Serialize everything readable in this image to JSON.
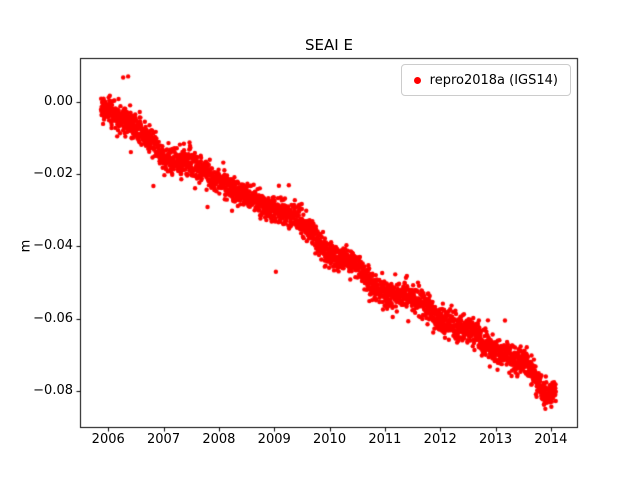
{
  "figure": {
    "background": "#ffffff"
  },
  "chart_data": {
    "type": "scatter",
    "title": "SEAI E",
    "xlabel": "",
    "ylabel": "m",
    "xlim": [
      2005.49,
      2014.49
    ],
    "ylim": [
      -0.0903,
      0.0122
    ],
    "grid": false,
    "xticks": [
      2006,
      2007,
      2008,
      2009,
      2010,
      2011,
      2012,
      2013,
      2014
    ],
    "xtick_labels": [
      "2006",
      "2007",
      "2008",
      "2009",
      "2010",
      "2011",
      "2012",
      "2013",
      "2014"
    ],
    "yticks": [
      0.0,
      -0.02,
      -0.04,
      -0.06,
      -0.08
    ],
    "ytick_labels": [
      "0.00",
      "−0.02",
      "−0.04",
      "−0.06",
      "−0.08"
    ],
    "legend": {
      "position": "upper right",
      "label": "repro2018a (IGS14)",
      "marker_color": "#ff0000"
    },
    "series": [
      {
        "name": "repro2018a (IGS14)",
        "color": "#ff0000",
        "marker": "o",
        "marker_radius_px": 2.2,
        "n_points": 2900,
        "x_start": 2005.87,
        "x_end": 2014.09,
        "noise_std": 0.0018,
        "seasonal_amplitude": 0.0008,
        "trend_anchors": [
          [
            2005.87,
            -0.0005
          ],
          [
            2006.0,
            -0.001
          ],
          [
            2006.2,
            -0.004
          ],
          [
            2006.5,
            -0.008
          ],
          [
            2006.8,
            -0.011
          ],
          [
            2007.0,
            -0.0145
          ],
          [
            2007.3,
            -0.017
          ],
          [
            2007.6,
            -0.0185
          ],
          [
            2008.0,
            -0.021
          ],
          [
            2008.2,
            -0.0235
          ],
          [
            2008.5,
            -0.027
          ],
          [
            2008.8,
            -0.0285
          ],
          [
            2009.0,
            -0.029
          ],
          [
            2009.2,
            -0.03
          ],
          [
            2009.5,
            -0.034
          ],
          [
            2009.8,
            -0.039
          ],
          [
            2010.0,
            -0.0415
          ],
          [
            2010.2,
            -0.043
          ],
          [
            2010.5,
            -0.046
          ],
          [
            2010.7,
            -0.05
          ],
          [
            2011.0,
            -0.0525
          ],
          [
            2011.4,
            -0.054
          ],
          [
            2011.7,
            -0.0565
          ],
          [
            2012.0,
            -0.0595
          ],
          [
            2012.3,
            -0.0625
          ],
          [
            2012.6,
            -0.0645
          ],
          [
            2013.0,
            -0.0685
          ],
          [
            2013.3,
            -0.071
          ],
          [
            2013.6,
            -0.074
          ],
          [
            2013.85,
            -0.0795
          ],
          [
            2013.95,
            -0.081
          ],
          [
            2014.09,
            -0.0785
          ]
        ],
        "outliers": [
          [
            2006.27,
            0.0068
          ],
          [
            2006.36,
            0.0071
          ],
          [
            2009.03,
            -0.047
          ],
          [
            2013.17,
            -0.0605
          ],
          [
            2013.9,
            -0.085
          ],
          [
            2013.88,
            -0.0838
          ]
        ]
      }
    ]
  }
}
